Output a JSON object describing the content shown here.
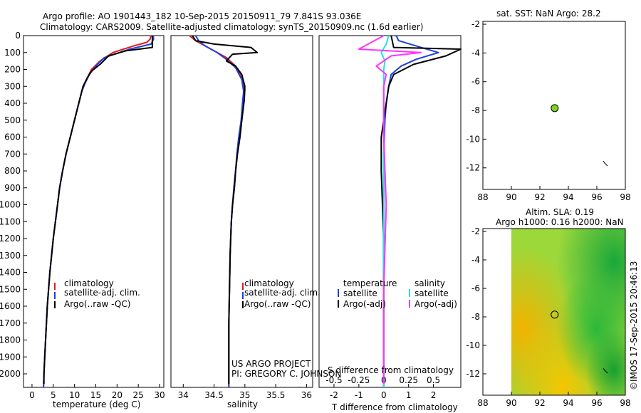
{
  "title_line1": "Argo profile: AO 1901443_182 10-Sep-2015 20150911_79 7.841S 93.036E",
  "title_line2": "Climatology: CARS2009. Satellite-adjusted climatology: synTS_20150909.nc (1.6d earlier)",
  "credit": "©IMOS 17-Sep-2015 20:46:13",
  "colors": {
    "clim": "#e31a1c",
    "sat": "#1f3fdc",
    "argo": "#000000",
    "sat_s": "#22e0e8",
    "argo_s": "#ff33ff",
    "marker": "#7ed321"
  },
  "chart_data": [
    {
      "type": "line",
      "id": "temperature",
      "xlabel": "temperature (deg C)",
      "xlim": [
        -2,
        31
      ],
      "ylim": [
        0,
        2080
      ],
      "xticks": [
        0,
        5,
        10,
        15,
        20,
        25,
        30
      ],
      "yticks": [
        0,
        100,
        200,
        300,
        400,
        500,
        600,
        700,
        800,
        900,
        1000,
        1100,
        1200,
        1300,
        1400,
        1500,
        1600,
        1700,
        1800,
        1900,
        2000
      ],
      "legend": [
        "climatology",
        "satellite-adj. clim.",
        "Argo(..raw -QC)"
      ],
      "series": [
        {
          "name": "climatology",
          "color": "clim",
          "points": [
            [
              28,
              0
            ],
            [
              27.8,
              20
            ],
            [
              27,
              40
            ],
            [
              24,
              60
            ],
            [
              19,
              100
            ],
            [
              16,
              150
            ],
            [
              14,
              200
            ],
            [
              13,
              250
            ],
            [
              12,
              300
            ],
            [
              11,
              400
            ],
            [
              10,
              500
            ],
            [
              9,
              600
            ],
            [
              8,
              700
            ],
            [
              7.2,
              800
            ],
            [
              6.5,
              900
            ],
            [
              6,
              1000
            ],
            [
              5.5,
              1100
            ],
            [
              5,
              1200
            ],
            [
              4.6,
              1300
            ],
            [
              4.2,
              1400
            ],
            [
              3.9,
              1500
            ],
            [
              3.6,
              1600
            ],
            [
              3.4,
              1700
            ],
            [
              3.2,
              1800
            ],
            [
              3,
              1900
            ],
            [
              2.8,
              2000
            ],
            [
              2.7,
              2080
            ]
          ]
        },
        {
          "name": "satellite-adj. clim.",
          "color": "sat",
          "points": [
            [
              28.5,
              0
            ],
            [
              28.6,
              20
            ],
            [
              28,
              50
            ],
            [
              23,
              80
            ],
            [
              17,
              130
            ],
            [
              15,
              180
            ],
            [
              13.5,
              230
            ],
            [
              12.5,
              280
            ],
            [
              11.7,
              330
            ],
            [
              10.8,
              420
            ],
            [
              10,
              500
            ],
            [
              9,
              600
            ],
            [
              8,
              700
            ],
            [
              7.2,
              800
            ],
            [
              6.5,
              900
            ],
            [
              6,
              1000
            ],
            [
              5.5,
              1100
            ],
            [
              5,
              1200
            ],
            [
              4.6,
              1300
            ],
            [
              4.2,
              1400
            ],
            [
              3.9,
              1500
            ],
            [
              3.6,
              1600
            ],
            [
              3.4,
              1700
            ],
            [
              3.2,
              1800
            ],
            [
              3,
              1900
            ],
            [
              2.8,
              2000
            ],
            [
              2.7,
              2080
            ]
          ]
        },
        {
          "name": "Argo(..raw -QC)",
          "color": "argo",
          "points": [
            [
              28.3,
              0
            ],
            [
              28.3,
              70
            ],
            [
              22,
              90
            ],
            [
              18,
              120
            ],
            [
              16,
              170
            ],
            [
              14,
              210
            ],
            [
              13,
              250
            ],
            [
              12,
              300
            ],
            [
              11,
              400
            ],
            [
              10,
              500
            ],
            [
              9,
              600
            ],
            [
              8,
              700
            ],
            [
              7.2,
              800
            ],
            [
              6.5,
              900
            ],
            [
              6,
              1000
            ],
            [
              5.5,
              1100
            ],
            [
              5,
              1200
            ],
            [
              4.6,
              1300
            ],
            [
              4.2,
              1400
            ],
            [
              3.9,
              1500
            ],
            [
              3.6,
              1600
            ],
            [
              3.4,
              1700
            ],
            [
              3.2,
              1800
            ],
            [
              3,
              1900
            ],
            [
              2.8,
              2000
            ],
            [
              2.8,
              2060
            ]
          ]
        }
      ]
    },
    {
      "type": "line",
      "id": "salinity",
      "xlabel": "salinity",
      "xlim": [
        33.8,
        36.1
      ],
      "ylim": [
        0,
        2080
      ],
      "xticks": [
        34,
        34.5,
        35,
        35.5,
        36
      ],
      "legend": [
        "climatology",
        "satellite-adj. clim.",
        "Argo(..raw -QC)"
      ],
      "annotation_line1": "US ARGO PROJECT",
      "annotation_line2": "PI: GREGORY C. JOHNSON",
      "series": [
        {
          "name": "climatology",
          "color": "clim",
          "points": [
            [
              34.1,
              0
            ],
            [
              34.2,
              30
            ],
            [
              34.35,
              60
            ],
            [
              34.5,
              90
            ],
            [
              34.7,
              130
            ],
            [
              34.85,
              180
            ],
            [
              34.95,
              250
            ],
            [
              35.0,
              320
            ],
            [
              34.98,
              400
            ],
            [
              34.95,
              500
            ],
            [
              34.92,
              600
            ],
            [
              34.88,
              700
            ],
            [
              34.85,
              800
            ],
            [
              34.83,
              900
            ],
            [
              34.8,
              1000
            ],
            [
              34.78,
              1100
            ],
            [
              34.77,
              1200
            ],
            [
              34.76,
              1300
            ],
            [
              34.75,
              1500
            ],
            [
              34.74,
              1700
            ],
            [
              34.74,
              1900
            ],
            [
              34.74,
              2080
            ]
          ]
        },
        {
          "name": "satellite-adj. clim.",
          "color": "sat",
          "points": [
            [
              34.2,
              0
            ],
            [
              34.25,
              30
            ],
            [
              34.35,
              60
            ],
            [
              34.55,
              100
            ],
            [
              34.7,
              140
            ],
            [
              34.85,
              190
            ],
            [
              34.95,
              260
            ],
            [
              34.98,
              330
            ],
            [
              34.96,
              400
            ],
            [
              34.94,
              500
            ],
            [
              34.9,
              600
            ],
            [
              34.87,
              700
            ],
            [
              34.85,
              800
            ],
            [
              34.82,
              900
            ],
            [
              34.8,
              1000
            ],
            [
              34.78,
              1100
            ],
            [
              34.77,
              1200
            ],
            [
              34.76,
              1300
            ],
            [
              34.75,
              1500
            ],
            [
              34.74,
              1700
            ],
            [
              34.74,
              1900
            ],
            [
              34.74,
              2080
            ]
          ]
        },
        {
          "name": "Argo(..raw -QC)",
          "color": "argo",
          "points": [
            [
              34.15,
              0
            ],
            [
              34.2,
              30
            ],
            [
              34.5,
              50
            ],
            [
              35.1,
              70
            ],
            [
              35.2,
              100
            ],
            [
              34.8,
              110
            ],
            [
              34.7,
              150
            ],
            [
              34.85,
              180
            ],
            [
              34.95,
              230
            ],
            [
              35.0,
              300
            ],
            [
              34.99,
              380
            ],
            [
              34.95,
              500
            ],
            [
              34.92,
              600
            ],
            [
              34.88,
              700
            ],
            [
              34.85,
              800
            ],
            [
              34.83,
              900
            ],
            [
              34.8,
              1000
            ],
            [
              34.78,
              1100
            ],
            [
              34.77,
              1200
            ],
            [
              34.76,
              1300
            ],
            [
              34.75,
              1500
            ],
            [
              34.74,
              1700
            ],
            [
              34.74,
              1900
            ],
            [
              34.74,
              2060
            ]
          ]
        }
      ]
    },
    {
      "type": "line",
      "id": "differences",
      "xlabel": "T difference from climatology",
      "top_label": "S difference from climatology",
      "xlim": [
        -2.6,
        3.1
      ],
      "ylim": [
        0,
        2080
      ],
      "xticks": [
        -2,
        -1,
        0,
        1,
        2
      ],
      "top_ticks": [
        "-0.5",
        "-0.25",
        "0",
        "0.25",
        "0.5"
      ],
      "top_tick_positions": [
        -2,
        -1,
        0,
        1,
        2
      ],
      "legend_t_title": "temperature",
      "legend_s_title": "salinity",
      "legend": [
        "satellite",
        "Argo(-adj)",
        "satellite",
        "Argo(-adj)"
      ],
      "series": [
        {
          "name": "T satellite",
          "color": "sat",
          "points": [
            [
              0.5,
              0
            ],
            [
              0.6,
              30
            ],
            [
              1.5,
              70
            ],
            [
              2.2,
              100
            ],
            [
              1.3,
              140
            ],
            [
              0.7,
              180
            ],
            [
              0.3,
              230
            ],
            [
              0.2,
              300
            ],
            [
              0.1,
              400
            ],
            [
              0.05,
              500
            ],
            [
              0,
              700
            ],
            [
              0,
              1000
            ],
            [
              0,
              1500
            ],
            [
              0,
              2080
            ]
          ]
        },
        {
          "name": "T Argo(-adj)",
          "color": "argo",
          "points": [
            [
              0.3,
              0
            ],
            [
              0.4,
              70
            ],
            [
              3.1,
              80
            ],
            [
              2.5,
              120
            ],
            [
              1.2,
              170
            ],
            [
              0.4,
              230
            ],
            [
              0.2,
              300
            ],
            [
              0.1,
              400
            ],
            [
              -0.1,
              600
            ],
            [
              -0.1,
              800
            ],
            [
              -0.05,
              1000
            ],
            [
              0,
              1200
            ],
            [
              0,
              1600
            ],
            [
              0,
              2060
            ]
          ]
        },
        {
          "name": "S satellite",
          "color": "sat_s",
          "points": [
            [
              0.2,
              0
            ],
            [
              0.1,
              50
            ],
            [
              -0.1,
              100
            ],
            [
              0.05,
              150
            ],
            [
              0,
              200
            ],
            [
              0,
              500
            ],
            [
              0,
              1000
            ],
            [
              0,
              1500
            ],
            [
              0,
              2080
            ]
          ]
        },
        {
          "name": "S Argo(-adj)",
          "color": "argo_s",
          "points": [
            [
              0,
              0
            ],
            [
              -1,
              80
            ],
            [
              1.5,
              100
            ],
            [
              0.3,
              120
            ],
            [
              -0.3,
              180
            ],
            [
              0.1,
              230
            ],
            [
              0,
              300
            ],
            [
              0,
              600
            ],
            [
              0.1,
              1000
            ],
            [
              0,
              1500
            ],
            [
              0,
              2060
            ]
          ]
        }
      ]
    },
    {
      "type": "scatter",
      "id": "sst_map",
      "title": "sat. SST: NaN Argo: 28.2",
      "xlim": [
        88,
        98
      ],
      "ylim": [
        -13.5,
        -1.8
      ],
      "xticks": [
        88,
        90,
        92,
        94,
        96,
        98
      ],
      "yticks": [
        -2,
        -4,
        -6,
        -8,
        -10,
        -12
      ],
      "points": [
        [
          93.04,
          -7.84
        ]
      ]
    },
    {
      "type": "heatmap",
      "id": "sla_map",
      "title_line1": "Altim. SLA: 0.19",
      "title_line2": "Argo h1000: 0.16 h2000: NaN",
      "xlim": [
        88,
        98
      ],
      "ylim": [
        -13.5,
        -1.8
      ],
      "xticks": [
        88,
        90,
        92,
        94,
        96,
        98
      ],
      "yticks": [
        -2,
        -4,
        -6,
        -8,
        -10,
        -12
      ],
      "data_extent": [
        90,
        98
      ],
      "points": [
        [
          93.04,
          -7.84
        ]
      ]
    }
  ]
}
